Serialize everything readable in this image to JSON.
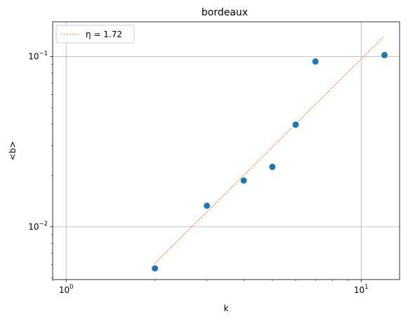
{
  "chart_data": {
    "type": "scatter",
    "title": "bordeaux",
    "xlabel": "k",
    "ylabel": "<b>",
    "xscale": "log",
    "yscale": "log",
    "xlim": [
      0.9,
      13.5
    ],
    "ylim": [
      0.0049,
      0.16
    ],
    "grid": true,
    "legend_placement": "top-left",
    "x_major_ticks": [
      {
        "value": 1,
        "base": "10",
        "exp": "0"
      },
      {
        "value": 10,
        "base": "10",
        "exp": "1"
      }
    ],
    "y_major_ticks": [
      {
        "value": 0.01,
        "base": "10",
        "exp": "−2"
      },
      {
        "value": 0.1,
        "base": "10",
        "exp": "−1"
      }
    ],
    "points": {
      "x": [
        2,
        3,
        4,
        5,
        6,
        7,
        12
      ],
      "y": [
        0.0057,
        0.0133,
        0.0187,
        0.0225,
        0.0398,
        0.0935,
        0.102
      ],
      "color": "#1f77b4"
    },
    "fit": {
      "name": "η = 1.72",
      "x": [
        2,
        12
      ],
      "y": [
        0.0061,
        0.132
      ],
      "color": "#ff7f0e",
      "style": "dotted"
    }
  }
}
